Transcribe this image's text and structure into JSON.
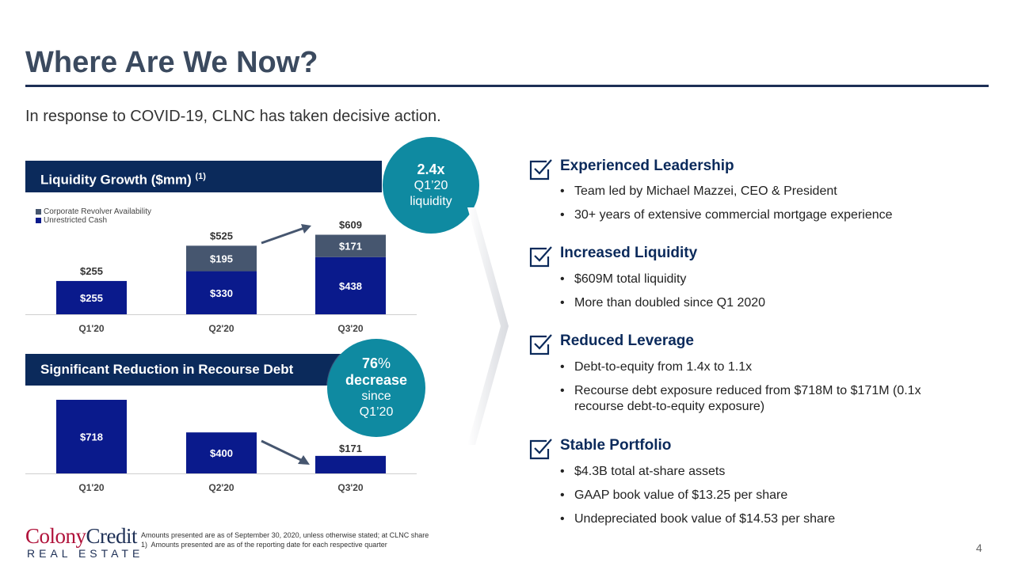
{
  "header": {
    "title": "Where Are We Now?",
    "subtitle": "In response to COVID-19, CLNC has taken decisive action."
  },
  "liquidity_panel": {
    "title": "Liquidity Growth ($mm)",
    "title_sup": "(1)",
    "bubble": {
      "big": "2.4x",
      "line1": "Q1’20",
      "line2": "liquidity"
    }
  },
  "debt_panel": {
    "title": "Significant Reduction in Recourse Debt",
    "bubble": {
      "big": "76",
      "suffix": "%",
      "line1": "decrease",
      "line2": "since",
      "line3": "Q1’20"
    }
  },
  "colors": {
    "unrestricted_cash": "#0a1a8c",
    "revolver": "#46566f",
    "panel_head": "#0b2a5b",
    "bubble": "#0f8aa1"
  },
  "chart_data": [
    {
      "type": "bar",
      "stacked": true,
      "categories": [
        "Q1'20",
        "Q2'20",
        "Q3'20"
      ],
      "series": [
        {
          "name": "Unrestricted Cash",
          "values": [
            255,
            330,
            438
          ],
          "labels": [
            "$255",
            "$330",
            "$438"
          ]
        },
        {
          "name": "Corporate Revolver Availability",
          "values": [
            0,
            195,
            171
          ],
          "labels": [
            "",
            "$195",
            "$171"
          ]
        }
      ],
      "totals": [
        "$255",
        "$525",
        "$609"
      ],
      "legend": "top-left"
    },
    {
      "type": "bar",
      "categories": [
        "Q1'20",
        "Q2'20",
        "Q3'20"
      ],
      "values": [
        718,
        400,
        171
      ],
      "labels": [
        "$718",
        "$400",
        "$171"
      ]
    }
  ],
  "sections": [
    {
      "head": "Experienced Leadership",
      "items": [
        "Team led by Michael Mazzei, CEO & President",
        "30+ years of extensive commercial mortgage experience"
      ]
    },
    {
      "head": "Increased Liquidity",
      "items": [
        "$609M total liquidity",
        "More than doubled since Q1 2020"
      ]
    },
    {
      "head": "Reduced Leverage",
      "items": [
        "Debt-to-equity from 1.4x to 1.1x",
        "Recourse debt exposure reduced from $718M to $171M (0.1x recourse debt-to-equity exposure)"
      ]
    },
    {
      "head": "Stable Portfolio",
      "items": [
        "$4.3B total at-share assets",
        "GAAP book value of $13.25 per share",
        "Undepreciated book value of $14.53 per share"
      ]
    }
  ],
  "footer": {
    "logo_colony": "Colony",
    "logo_credit": "Credit",
    "logo_re": "REAL ESTATE",
    "note1": "Amounts presented are as of September 30, 2020, unless otherwise stated; at CLNC share",
    "note2_num": "1)",
    "note2": "Amounts presented are as of the reporting date for each respective quarter",
    "page_number": "4"
  }
}
